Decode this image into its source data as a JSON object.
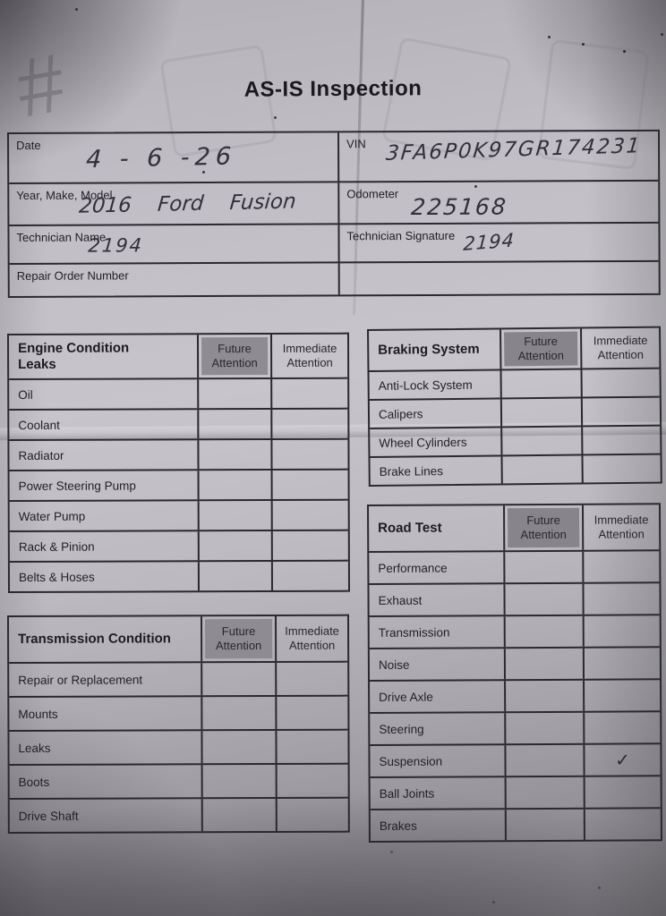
{
  "title": "AS-IS Inspection",
  "annotations": {
    "corner_mark": "#"
  },
  "cols": {
    "future": "Future\nAttention",
    "immediate": "Immediate\nAttention"
  },
  "info": {
    "date": {
      "label": "Date",
      "value": "4 - 6 -26"
    },
    "ymm": {
      "label": "Year, Make, Model",
      "value": "2016    Ford    Fusion"
    },
    "tech_name": {
      "label": "Technician Name",
      "value": "2194"
    },
    "repair_order": {
      "label": "Repair Order Number",
      "value": ""
    },
    "vin": {
      "label": "VIN",
      "value": "3FA6P0K97GR174231"
    },
    "odometer": {
      "label": "Odometer",
      "value": "225168"
    },
    "tech_sig": {
      "label": "Technician Signature",
      "value": "2194"
    },
    "blank": {
      "label": "",
      "value": ""
    }
  },
  "engine": {
    "title": "Engine Condition\nLeaks",
    "rows": [
      {
        "label": "Oil",
        "future": "",
        "immediate": ""
      },
      {
        "label": "Coolant",
        "future": "",
        "immediate": ""
      },
      {
        "label": "Radiator",
        "future": "",
        "immediate": ""
      },
      {
        "label": "Power Steering Pump",
        "future": "",
        "immediate": ""
      },
      {
        "label": "Water Pump",
        "future": "",
        "immediate": ""
      },
      {
        "label": "Rack & Pinion",
        "future": "",
        "immediate": ""
      },
      {
        "label": "Belts & Hoses",
        "future": "",
        "immediate": ""
      }
    ]
  },
  "braking": {
    "title": "Braking System",
    "rows": [
      {
        "label": "Anti-Lock System",
        "future": "",
        "immediate": ""
      },
      {
        "label": "Calipers",
        "future": "",
        "immediate": ""
      },
      {
        "label": "Wheel Cylinders",
        "future": "",
        "immediate": ""
      },
      {
        "label": "Brake Lines",
        "future": "",
        "immediate": ""
      }
    ]
  },
  "road": {
    "title": "Road Test",
    "rows": [
      {
        "label": "Performance",
        "future": "",
        "immediate": ""
      },
      {
        "label": "Exhaust",
        "future": "",
        "immediate": ""
      },
      {
        "label": "Transmission",
        "future": "",
        "immediate": ""
      },
      {
        "label": "Noise",
        "future": "",
        "immediate": ""
      },
      {
        "label": "Drive Axle",
        "future": "",
        "immediate": ""
      },
      {
        "label": "Steering",
        "future": "",
        "immediate": ""
      },
      {
        "label": "Suspension",
        "future": "",
        "immediate": "✓"
      },
      {
        "label": "Ball Joints",
        "future": "",
        "immediate": ""
      },
      {
        "label": "Brakes",
        "future": "",
        "immediate": ""
      }
    ]
  },
  "transmission": {
    "title": "Transmission Condition",
    "rows": [
      {
        "label": "Repair or Replacement",
        "future": "",
        "immediate": ""
      },
      {
        "label": "Mounts",
        "future": "",
        "immediate": ""
      },
      {
        "label": "Leaks",
        "future": "",
        "immediate": ""
      },
      {
        "label": "Boots",
        "future": "",
        "immediate": ""
      },
      {
        "label": "Drive Shaft",
        "future": "",
        "immediate": ""
      }
    ]
  }
}
